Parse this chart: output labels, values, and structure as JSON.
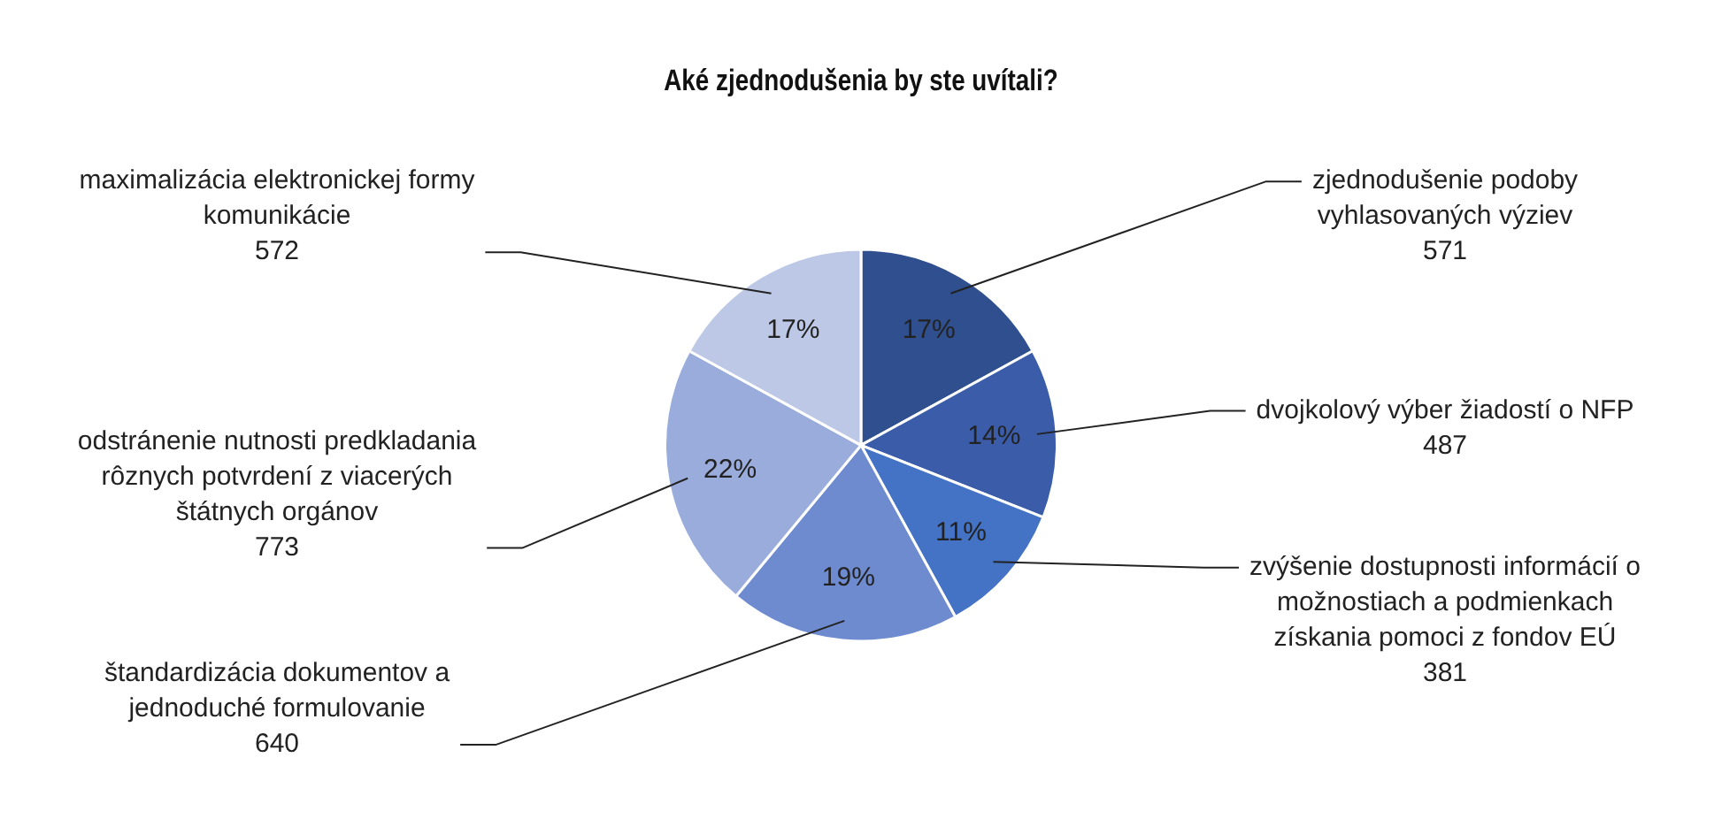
{
  "chart_data": {
    "type": "pie",
    "title": "Aké zjednodušenia by ste uvítali?",
    "categories": [
      "zjednodušenie podoby vyhlasovaných výziev",
      "dvojkolový výber žiadostí o NFP",
      "zvýšenie dostupnosti informácií o možnostiach a podmienkach získania pomoci z fondov EÚ",
      "štandardizácia dokumentov a jednoduché formulovanie",
      "odstránenie nutnosti predkladania rôznych potvrdení z viacerých štátnych orgánov",
      "maximalizácia elektronickej formy komunikácie"
    ],
    "values": [
      17,
      14,
      11,
      19,
      22,
      17
    ],
    "annotations": [
      "571",
      "487",
      "381",
      "640",
      "773",
      "572"
    ],
    "value_labels": [
      "17%",
      "14%",
      "11%",
      "19%",
      "22%",
      "17%"
    ],
    "colors": [
      "#2f4f8f",
      "#3a5ca9",
      "#4472c4",
      "#6f8bcf",
      "#9aacdb",
      "#bcc8e6"
    ],
    "data_labels": true,
    "legend": false
  }
}
